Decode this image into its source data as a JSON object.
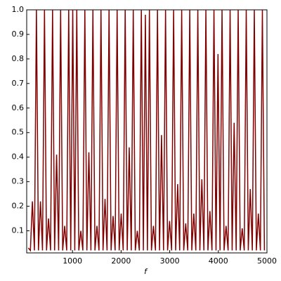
{
  "chart_data": {
    "type": "line",
    "xlabel": "f",
    "color": "#800000",
    "xlim": [
      58,
      5000
    ],
    "ylim": [
      0.01,
      1
    ],
    "xticks": [
      1000,
      2000,
      3000,
      4000,
      5000
    ],
    "yticks": [
      0.1,
      0.2,
      0.3,
      0.4,
      0.5,
      0.6,
      0.7,
      0.8,
      0.9,
      {
        "value": 1,
        "label": "1.0"
      }
    ],
    "grid": false,
    "x": [
      92,
      134,
      175,
      217,
      258,
      300,
      341,
      383,
      424,
      466,
      507,
      549,
      590,
      632,
      673,
      715,
      756,
      798,
      839,
      881,
      922,
      964,
      1005,
      1047,
      1088,
      1130,
      1171,
      1213,
      1254,
      1296,
      1337,
      1379,
      1420,
      1462,
      1503,
      1545,
      1586,
      1628,
      1669,
      1711,
      1752,
      1794,
      1835,
      1877,
      1918,
      1960,
      2001,
      2043,
      2084,
      2126,
      2167,
      2209,
      2250,
      2292,
      2333,
      2375,
      2416,
      2458,
      2499,
      2541,
      2582,
      2624,
      2665,
      2707,
      2748,
      2790,
      2831,
      2873,
      2914,
      2956,
      2997,
      3039,
      3080,
      3122,
      3163,
      3205,
      3246,
      3288,
      3329,
      3371,
      3412,
      3454,
      3495,
      3537,
      3578,
      3620,
      3661,
      3703,
      3744,
      3786,
      3827,
      3869,
      3910,
      3952,
      3993,
      4035,
      4076,
      4118,
      4159,
      4201,
      4242,
      4284,
      4325,
      4367,
      4408,
      4450,
      4491,
      4533,
      4574,
      4616,
      4657,
      4699,
      4740,
      4782,
      4823,
      4865,
      4906,
      4948
    ],
    "values": [
      0.03,
      0.02,
      0.22,
      0.02,
      1,
      0.02,
      0.22,
      0.02,
      1,
      0.02,
      0.15,
      0.02,
      1,
      0.02,
      0.41,
      0.02,
      1,
      0.02,
      0.12,
      0.02,
      1,
      0.02,
      1,
      0.02,
      1,
      0.02,
      0.1,
      0.02,
      1,
      0.02,
      0.42,
      0.02,
      1,
      0.02,
      0.12,
      0.02,
      1,
      0.02,
      0.23,
      0.02,
      1,
      0.02,
      0.16,
      0.02,
      1,
      0.02,
      0.17,
      0.02,
      1,
      0.02,
      0.44,
      0.02,
      1,
      0.02,
      0.1,
      0.02,
      1,
      0.02,
      0.98,
      0.02,
      1,
      0.02,
      0.12,
      0.02,
      1,
      0.02,
      0.49,
      0.02,
      1,
      0.02,
      0.14,
      0.02,
      1,
      0.02,
      0.29,
      0.02,
      1,
      0.02,
      0.13,
      0.02,
      1,
      0.02,
      0.17,
      0.02,
      1,
      0.02,
      0.31,
      0.02,
      1,
      0.02,
      0.18,
      0.02,
      1,
      0.02,
      0.82,
      0.02,
      1,
      0.02,
      0.12,
      0.02,
      1,
      0.02,
      0.54,
      0.02,
      1,
      0.02,
      0.11,
      0.02,
      1,
      0.02,
      0.27,
      0.02,
      1,
      0.02,
      0.17,
      0.02,
      1,
      0.02
    ]
  }
}
